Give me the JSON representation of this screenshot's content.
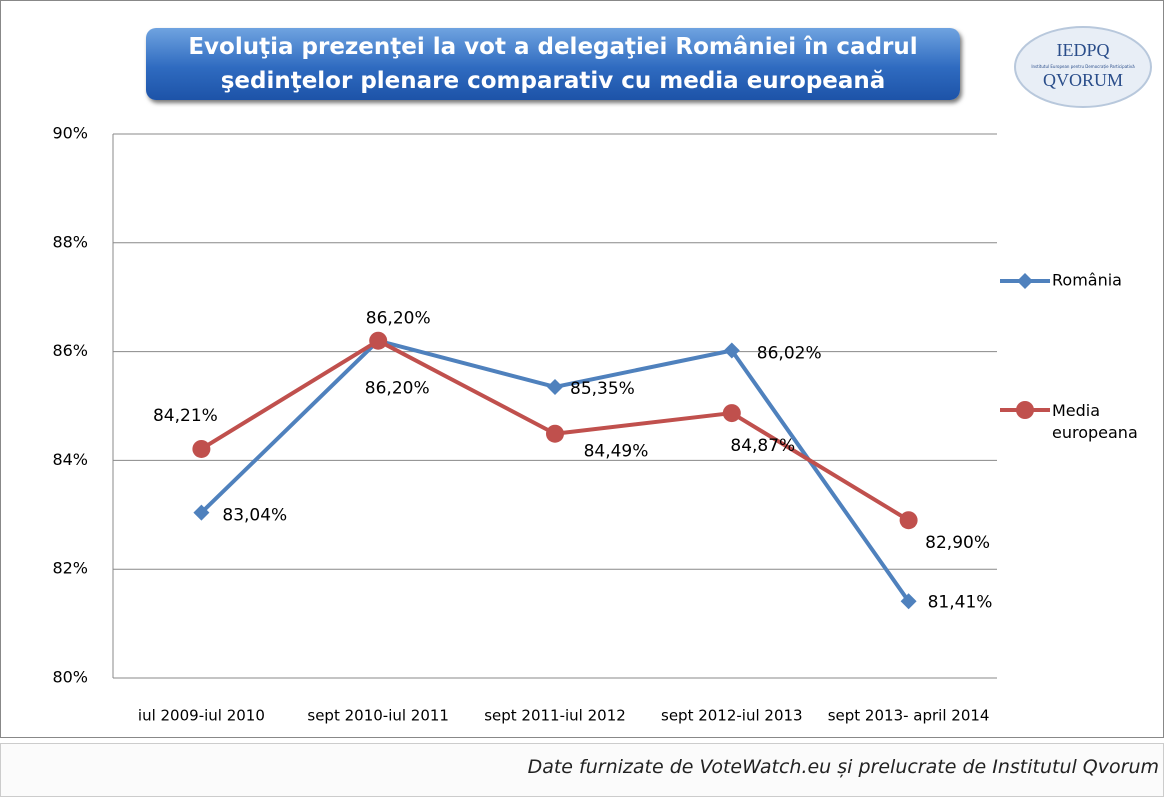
{
  "chart_data": {
    "type": "line",
    "title": "Evoluţia prezenţei la vot a delegaţiei României în cadrul şedinţelor plenare comparativ cu media europeană",
    "categories": [
      "iul 2009-iul 2010",
      "sept 2010-iul 2011",
      "sept 2011-iul 2012",
      "sept 2012-iul 2013",
      "sept 2013- april 2014"
    ],
    "series": [
      {
        "name": "România",
        "color": "#4f81bd",
        "marker": "diamond",
        "values": [
          83.04,
          86.2,
          85.35,
          86.02,
          81.41
        ],
        "value_labels": [
          "83,04%",
          "86,20%",
          "85,35%",
          "86,02%",
          "81,41%"
        ]
      },
      {
        "name": "Media europeana",
        "color": "#c0504d",
        "marker": "circle",
        "values": [
          84.21,
          86.2,
          84.49,
          84.87,
          82.9
        ],
        "value_labels": [
          "84,21%",
          "86,20%",
          "84,49%",
          "84,87%",
          "82,90%"
        ]
      }
    ],
    "ylim": [
      80,
      90
    ],
    "yticks": [
      {
        "value": 80,
        "label": "80%"
      },
      {
        "value": 82,
        "label": "82%"
      },
      {
        "value": 84,
        "label": "84%"
      },
      {
        "value": 86,
        "label": "86%"
      },
      {
        "value": 88,
        "label": "88%"
      },
      {
        "value": 90,
        "label": "90%"
      }
    ],
    "grid": true,
    "legend": "right"
  },
  "logo": {
    "top": "IEDPQ",
    "small": "Institutul European pentru Democrație Participativă",
    "bottom": "QVORUM"
  },
  "source": "Date furnizate de VoteWatch.eu și prelucrate de Institutul Qvorum"
}
